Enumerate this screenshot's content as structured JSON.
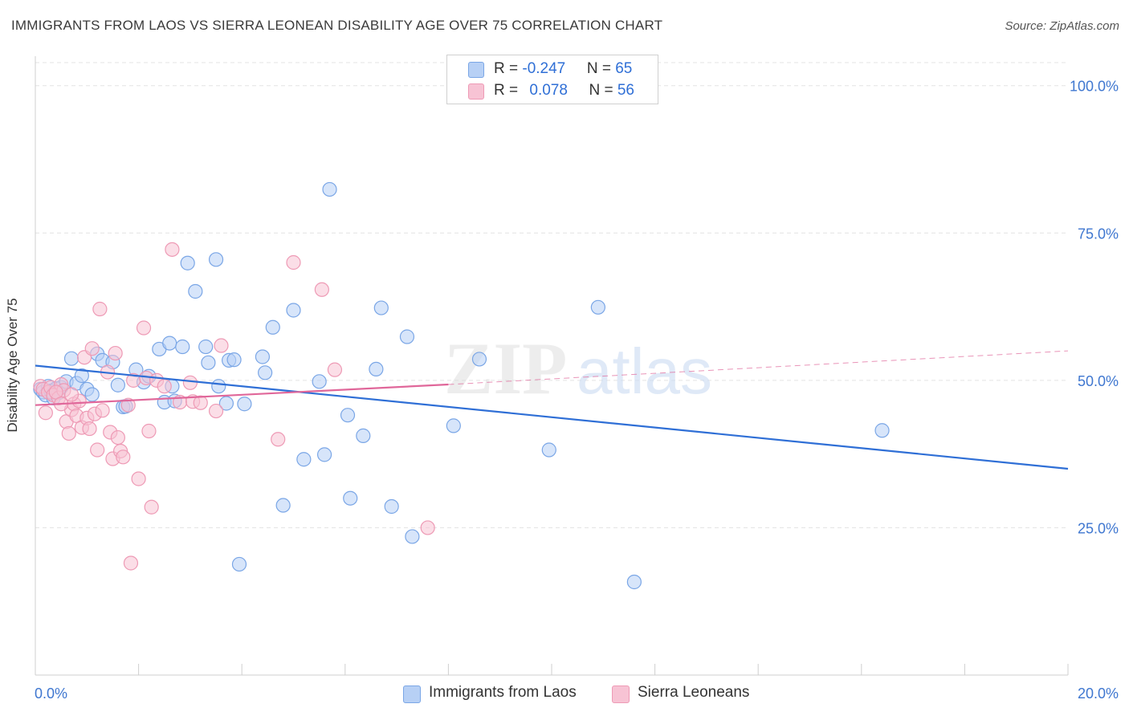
{
  "header": {
    "title": "IMMIGRANTS FROM LAOS VS SIERRA LEONEAN DISABILITY AGE OVER 75 CORRELATION CHART",
    "source": "Source: ZipAtlas.com"
  },
  "watermark": {
    "part1": "ZIP",
    "part2": "atlas"
  },
  "legend_top": {
    "rows": [
      {
        "r_label": "R = ",
        "r_value": "-0.247",
        "n_label": "N = ",
        "n_value": "65"
      },
      {
        "r_label": "R = ",
        "r_value": "0.078",
        "n_label": "N = ",
        "n_value": "56"
      }
    ]
  },
  "legend_bottom": {
    "items": [
      "Immigrants from Laos",
      "Sierra Leoneans"
    ]
  },
  "colors": {
    "blue_fill": "#b7d0f5",
    "blue_stroke": "#7aa6e6",
    "blue_line": "#2f6fd6",
    "pink_fill": "#f7c3d4",
    "pink_stroke": "#ee9ab5",
    "pink_line": "#e0679a",
    "axis_label": "#3f77d0",
    "grid": "#e3e3e3"
  },
  "chart_data": {
    "type": "scatter",
    "title": "IMMIGRANTS FROM LAOS VS SIERRA LEONEAN DISABILITY AGE OVER 75 CORRELATION CHART",
    "xlabel": "",
    "ylabel": "Disability Age Over 75",
    "xlim": [
      0,
      20
    ],
    "ylim": [
      0,
      105
    ],
    "x_tick_labels": [
      "0.0%",
      "20.0%"
    ],
    "y_ticks": [
      25,
      50,
      75,
      100
    ],
    "y_tick_labels": [
      "25.0%",
      "50.0%",
      "75.0%",
      "100.0%"
    ],
    "grid": "horizontal dashed",
    "legend_position": "top-center",
    "series": [
      {
        "name": "Immigrants from Laos",
        "color": "#b7d0f5",
        "points": [
          [
            0.1,
            48.5
          ],
          [
            0.15,
            48
          ],
          [
            0.2,
            47.5
          ],
          [
            0.25,
            49
          ],
          [
            0.3,
            48.2
          ],
          [
            0.35,
            47.8
          ],
          [
            0.4,
            48.6
          ],
          [
            0.45,
            47.9
          ],
          [
            0.5,
            48.8
          ],
          [
            0.6,
            49.8
          ],
          [
            0.7,
            53.7
          ],
          [
            0.8,
            49.5
          ],
          [
            0.9,
            50.8
          ],
          [
            1.0,
            48.5
          ],
          [
            1.1,
            47.6
          ],
          [
            1.2,
            54.5
          ],
          [
            1.3,
            53.4
          ],
          [
            1.5,
            53.1
          ],
          [
            1.6,
            49.2
          ],
          [
            1.7,
            45.5
          ],
          [
            1.75,
            45.6
          ],
          [
            1.95,
            51.8
          ],
          [
            2.1,
            49.7
          ],
          [
            2.2,
            50.7
          ],
          [
            2.4,
            55.3
          ],
          [
            2.5,
            46.3
          ],
          [
            2.6,
            56.3
          ],
          [
            2.65,
            49.0
          ],
          [
            2.7,
            46.5
          ],
          [
            2.85,
            55.7
          ],
          [
            2.95,
            69.9
          ],
          [
            3.1,
            65.1
          ],
          [
            3.3,
            55.7
          ],
          [
            3.35,
            53.0
          ],
          [
            3.5,
            70.5
          ],
          [
            3.55,
            49.0
          ],
          [
            3.7,
            46.1
          ],
          [
            3.75,
            53.4
          ],
          [
            3.85,
            53.5
          ],
          [
            3.95,
            18.8
          ],
          [
            4.05,
            46.0
          ],
          [
            4.4,
            54.0
          ],
          [
            4.45,
            51.3
          ],
          [
            4.6,
            59.0
          ],
          [
            4.8,
            28.8
          ],
          [
            5.0,
            61.9
          ],
          [
            5.2,
            36.6
          ],
          [
            5.5,
            49.8
          ],
          [
            5.6,
            37.4
          ],
          [
            5.7,
            82.4
          ],
          [
            6.05,
            44.1
          ],
          [
            6.1,
            30.0
          ],
          [
            6.35,
            40.6
          ],
          [
            6.6,
            51.9
          ],
          [
            6.7,
            62.3
          ],
          [
            6.9,
            28.6
          ],
          [
            7.2,
            57.4
          ],
          [
            7.3,
            23.5
          ],
          [
            8.1,
            42.3
          ],
          [
            8.6,
            53.6
          ],
          [
            9.95,
            38.2
          ],
          [
            10.9,
            62.4
          ],
          [
            11.6,
            15.8
          ],
          [
            16.4,
            41.5
          ],
          [
            0.35,
            47.0
          ]
        ]
      },
      {
        "name": "Sierra Leoneans",
        "color": "#f7c3d4",
        "points": [
          [
            0.1,
            49.0
          ],
          [
            0.15,
            48.5
          ],
          [
            0.2,
            44.5
          ],
          [
            0.25,
            48.0
          ],
          [
            0.3,
            48.8
          ],
          [
            0.35,
            47.5
          ],
          [
            0.45,
            47.0
          ],
          [
            0.5,
            49.3
          ],
          [
            0.55,
            48.3
          ],
          [
            0.6,
            43.0
          ],
          [
            0.65,
            41.0
          ],
          [
            0.7,
            45.0
          ],
          [
            0.75,
            46.0
          ],
          [
            0.8,
            44.0
          ],
          [
            0.85,
            46.5
          ],
          [
            0.9,
            42.0
          ],
          [
            0.95,
            53.9
          ],
          [
            1.0,
            43.6
          ],
          [
            1.05,
            41.8
          ],
          [
            1.1,
            55.4
          ],
          [
            1.15,
            44.3
          ],
          [
            1.2,
            38.2
          ],
          [
            1.25,
            62.1
          ],
          [
            1.3,
            44.9
          ],
          [
            1.4,
            51.4
          ],
          [
            1.45,
            41.2
          ],
          [
            1.5,
            36.7
          ],
          [
            1.55,
            54.6
          ],
          [
            1.6,
            40.3
          ],
          [
            1.65,
            38.0
          ],
          [
            1.7,
            37.0
          ],
          [
            1.8,
            45.8
          ],
          [
            1.85,
            19.0
          ],
          [
            1.9,
            50.0
          ],
          [
            2.0,
            33.3
          ],
          [
            2.1,
            58.9
          ],
          [
            2.15,
            50.4
          ],
          [
            2.2,
            41.4
          ],
          [
            2.25,
            28.5
          ],
          [
            2.35,
            50.0
          ],
          [
            2.5,
            49.0
          ],
          [
            2.65,
            72.2
          ],
          [
            2.8,
            46.3
          ],
          [
            3.0,
            49.6
          ],
          [
            3.05,
            46.4
          ],
          [
            3.2,
            46.2
          ],
          [
            3.5,
            44.8
          ],
          [
            3.6,
            55.9
          ],
          [
            4.7,
            40.0
          ],
          [
            5.0,
            70.0
          ],
          [
            5.55,
            65.4
          ],
          [
            5.8,
            51.8
          ],
          [
            7.6,
            25.0
          ],
          [
            0.4,
            48.0
          ],
          [
            0.7,
            47.6
          ],
          [
            0.5,
            46.0
          ]
        ]
      }
    ],
    "trendlines": [
      {
        "series": "Immigrants from Laos",
        "x": [
          0,
          20
        ],
        "y": [
          52.5,
          35.0
        ],
        "style": "solid"
      },
      {
        "series": "Sierra Leoneans",
        "x": [
          0,
          8
        ],
        "y": [
          45.8,
          49.3
        ],
        "style": "solid"
      },
      {
        "series": "Sierra Leoneans",
        "x": [
          8,
          20
        ],
        "y": [
          49.3,
          55.0
        ],
        "style": "dashed"
      }
    ]
  }
}
